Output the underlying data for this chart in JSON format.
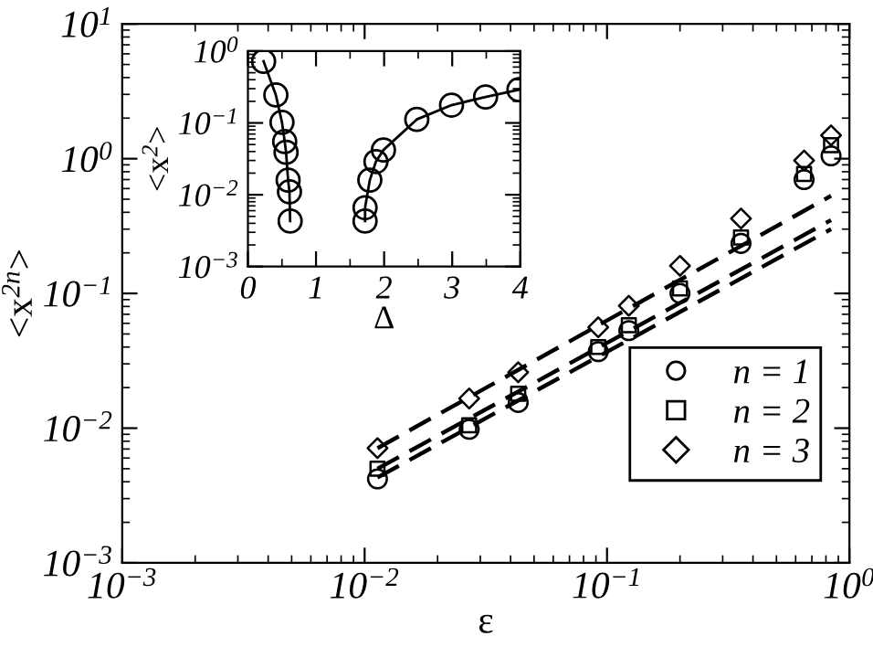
{
  "chart_data": [
    {
      "type": "scatter",
      "xlabel": "ε",
      "ylabel": "<x$^{2n}$>",
      "log": "xy",
      "xlim": [
        0.001,
        1
      ],
      "ylim": [
        0.001,
        10
      ],
      "xticks": [
        {
          "value": 0.001,
          "label": "10$^{−3}$"
        },
        {
          "value": 0.01,
          "label": "10$^{−2}$"
        },
        {
          "value": 0.1,
          "label": "10$^{−1}$"
        },
        {
          "value": 1,
          "label": "10$^{0}$"
        }
      ],
      "yticks": [
        {
          "value": 0.001,
          "label": "10$^{−3}$"
        },
        {
          "value": 0.01,
          "label": "10$^{−2}$"
        },
        {
          "value": 0.1,
          "label": "10$^{−1}$"
        },
        {
          "value": 1,
          "label": "10$^{0}$"
        },
        {
          "value": 10,
          "label": "10$^{1}$"
        }
      ],
      "legend": "lower right",
      "grid": false,
      "series": [
        {
          "name": "n = 1",
          "color": "#000000",
          "marker": "circle",
          "x": [
            0.0113,
            0.027,
            0.043,
            0.092,
            0.123,
            0.2,
            0.357,
            0.65,
            0.84
          ],
          "values": [
            0.0042,
            0.0098,
            0.0155,
            0.037,
            0.053,
            0.1,
            0.235,
            0.7,
            1.05
          ]
        },
        {
          "name": "n = 2",
          "color": "#000000",
          "marker": "square",
          "x": [
            0.0113,
            0.027,
            0.043,
            0.092,
            0.123,
            0.2,
            0.357,
            0.65,
            0.84
          ],
          "values": [
            0.005,
            0.0105,
            0.018,
            0.04,
            0.058,
            0.109,
            0.26,
            0.77,
            1.26
          ]
        },
        {
          "name": "n = 3",
          "color": "#000000",
          "marker": "diamond",
          "x": [
            0.0113,
            0.027,
            0.043,
            0.092,
            0.123,
            0.2,
            0.357,
            0.65,
            0.84
          ],
          "values": [
            0.0071,
            0.0166,
            0.026,
            0.056,
            0.081,
            0.16,
            0.36,
            0.97,
            1.49
          ]
        },
        {
          "type": "line",
          "color": "#000000",
          "line_style": "dashed",
          "marker": "none",
          "x": [
            0.0113,
            0.84
          ],
          "values": [
            0.0043,
            0.3
          ]
        },
        {
          "type": "line",
          "color": "#000000",
          "line_style": "dashed",
          "marker": "none",
          "x": [
            0.0113,
            0.84
          ],
          "values": [
            0.005,
            0.35
          ]
        },
        {
          "type": "line",
          "color": "#000000",
          "line_style": "dashed",
          "marker": "none",
          "x": [
            0.0113,
            0.84
          ],
          "values": [
            0.0071,
            0.53
          ]
        }
      ]
    },
    {
      "type": "line",
      "xlabel": "Δ",
      "ylabel": "<x$^{2}$>",
      "log": "y",
      "xlim": [
        0,
        4
      ],
      "ylim": [
        0.001,
        1
      ],
      "xticks": [
        0,
        1,
        2,
        3,
        4
      ],
      "yticks": [
        {
          "value": 0.001,
          "label": "10$^{−3}$"
        },
        {
          "value": 0.01,
          "label": "10$^{−2}$"
        },
        {
          "value": 0.1,
          "label": "10$^{−1}$"
        },
        {
          "value": 1,
          "label": "10$^{0}$"
        }
      ],
      "marker": "circle",
      "grid": false,
      "series": [
        {
          "color": "#000000",
          "x": [
            0.23,
            0.41,
            0.5,
            0.54,
            0.56,
            0.59,
            0.61,
            0.62
          ],
          "values": [
            0.72,
            0.245,
            0.102,
            0.055,
            0.039,
            0.016,
            0.011,
            0.0043
          ]
        },
        {
          "color": "#000000",
          "x": [
            1.72,
            1.72,
            1.79,
            1.88,
            1.99,
            2.48,
            2.99,
            3.49,
            3.98
          ],
          "values": [
            0.0043,
            0.0066,
            0.016,
            0.029,
            0.042,
            0.112,
            0.177,
            0.23,
            0.29
          ]
        }
      ]
    }
  ]
}
